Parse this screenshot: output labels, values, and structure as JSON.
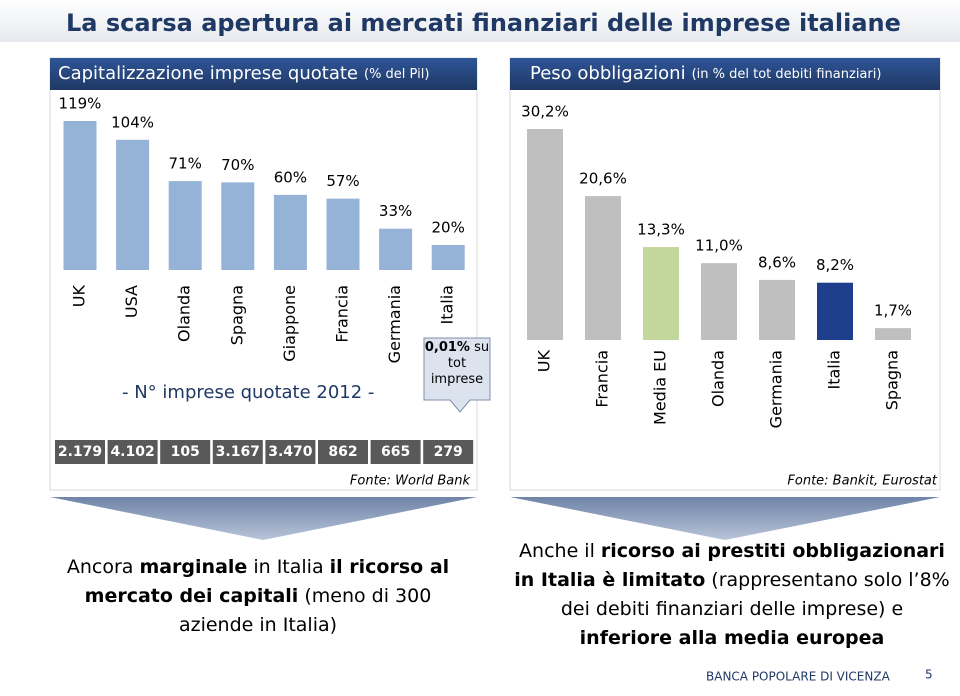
{
  "title": "La scarsa apertura ai mercati finanziari delle imprese italiane",
  "chart_data": [
    {
      "type": "bar",
      "title": "Capitalizzazione imprese quotate",
      "subtitle": "(% del Pil)",
      "categories": [
        "UK",
        "USA",
        "Olanda",
        "Spagna",
        "Giappone",
        "Francia",
        "Germania",
        "Italia"
      ],
      "values": [
        119,
        104,
        71,
        70,
        60,
        57,
        33,
        20
      ],
      "value_labels": [
        "119%",
        "104%",
        "71%",
        "70%",
        "60%",
        "57%",
        "33%",
        "20%"
      ],
      "color": "#95b3d7",
      "source": "Fonte: World Bank"
    },
    {
      "type": "bar",
      "title": "Peso obbligazioni",
      "subtitle": "(in % del tot debiti finanziari)",
      "categories": [
        "UK",
        "Francia",
        "Media EU",
        "Olanda",
        "Germania",
        "Italia",
        "Spagna"
      ],
      "values": [
        30.2,
        20.6,
        13.3,
        11.0,
        8.6,
        8.2,
        1.7
      ],
      "value_labels": [
        "30,2%",
        "20,6%",
        "13,3%",
        "11,0%",
        "8,6%",
        "8,2%",
        "1,7%"
      ],
      "colors": [
        "#bfbfbf",
        "#bfbfbf",
        "#c3d69b",
        "#bfbfbf",
        "#bfbfbf",
        "#1f3f8c",
        "#bfbfbf"
      ],
      "source": "Fonte: Bankit, Eurostat"
    }
  ],
  "quoted_companies": {
    "label": "- N° imprese quotate 2012 -",
    "counts": [
      "2.179",
      "4.102",
      "105",
      "3.167",
      "3.470",
      "862",
      "665",
      "279"
    ]
  },
  "callout": {
    "highlight": "0,01%",
    "text": "su tot imprese"
  },
  "notes": [
    [
      {
        "text": "Ancora ",
        "bold": false
      },
      {
        "text": "marginale",
        "bold": true
      },
      {
        "text": " in Italia ",
        "bold": false
      },
      {
        "text": "il ricorso al mercato dei capitali",
        "bold": true
      },
      {
        "text": " (meno di 300 aziende in Italia)",
        "bold": false
      }
    ],
    [
      {
        "text": "Anche il ",
        "bold": false
      },
      {
        "text": "ricorso ai prestiti obbligazionari in Italia è limitato",
        "bold": true
      },
      {
        "text": " (rappresentano solo l’8% dei debiti finanziari delle imprese) e ",
        "bold": false
      },
      {
        "text": "inferiore alla media europea",
        "bold": true
      }
    ]
  ],
  "footer": {
    "company": "BANCA POPOLARE DI VICENZA",
    "page": "5"
  }
}
